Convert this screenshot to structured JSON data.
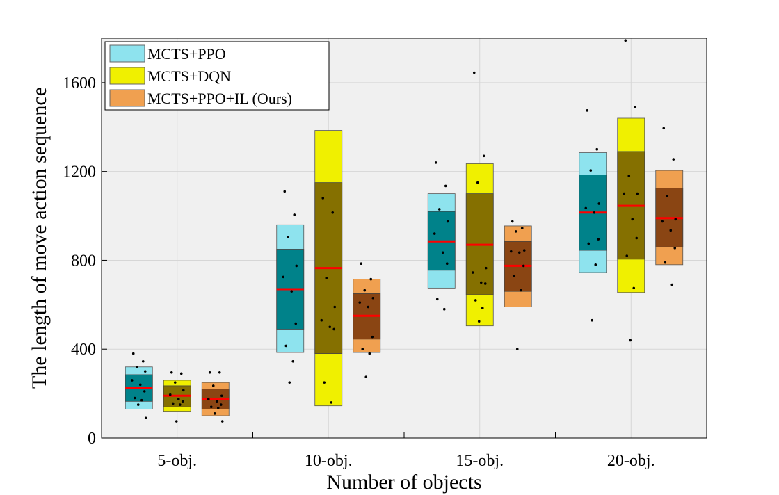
{
  "chart_data": {
    "type": "box",
    "title": "",
    "xlabel": "Number of objects",
    "ylabel": "The length of move action sequence",
    "ylim": [
      0,
      1800
    ],
    "yticks": [
      0,
      400,
      800,
      1200,
      1600
    ],
    "categories": [
      "5-obj.",
      "10-obj.",
      "15-obj.",
      "20-obj."
    ],
    "grid": true,
    "legend_position": "top-left",
    "series": [
      {
        "name": "MCTS+PPO",
        "light_color": "#8ee3ee",
        "dark_color": "#00828a",
        "boxes": [
          {
            "mean": 225,
            "sd_low": 165,
            "sd_high": 285,
            "ci_low": 130,
            "ci_high": 320,
            "points": [
              380,
              345,
              320,
              300,
              260,
              240,
              210,
              180,
              170,
              150,
              90
            ]
          },
          {
            "mean": 670,
            "sd_low": 490,
            "sd_high": 850,
            "ci_low": 385,
            "ci_high": 960,
            "points": [
              1110,
              1005,
              905,
              775,
              725,
              660,
              515,
              415,
              345,
              250
            ]
          },
          {
            "mean": 885,
            "sd_low": 755,
            "sd_high": 1020,
            "ci_low": 675,
            "ci_high": 1100,
            "points": [
              1240,
              1135,
              1030,
              975,
              920,
              835,
              785,
              625,
              580
            ]
          },
          {
            "mean": 1015,
            "sd_low": 845,
            "sd_high": 1185,
            "ci_low": 745,
            "ci_high": 1285,
            "points": [
              1475,
              1300,
              1205,
              1055,
              1035,
              1015,
              895,
              875,
              780,
              530
            ]
          }
        ]
      },
      {
        "name": "MCTS+DQN",
        "light_color": "#f0f000",
        "dark_color": "#857000",
        "boxes": [
          {
            "mean": 190,
            "sd_low": 140,
            "sd_high": 235,
            "ci_low": 120,
            "ci_high": 260,
            "points": [
              295,
              290,
              250,
              215,
              195,
              175,
              165,
              155,
              150,
              75
            ]
          },
          {
            "mean": 765,
            "sd_low": 380,
            "sd_high": 1150,
            "ci_low": 145,
            "ci_high": 1385,
            "points": [
              1080,
              1015,
              720,
              590,
              530,
              500,
              490,
              250,
              160
            ]
          },
          {
            "mean": 870,
            "sd_low": 645,
            "sd_high": 1100,
            "ci_low": 505,
            "ci_high": 1235,
            "points": [
              1645,
              1270,
              1150,
              765,
              745,
              700,
              695,
              620,
              585,
              525
            ]
          },
          {
            "mean": 1045,
            "sd_low": 805,
            "sd_high": 1290,
            "ci_low": 655,
            "ci_high": 1440,
            "points": [
              1790,
              1490,
              1180,
              1100,
              1100,
              985,
              900,
              820,
              675,
              440
            ]
          }
        ]
      },
      {
        "name": "MCTS+PPO+IL (Ours)",
        "light_color": "#f0a050",
        "dark_color": "#8a4513",
        "boxes": [
          {
            "mean": 175,
            "sd_low": 130,
            "sd_high": 220,
            "ci_low": 100,
            "ci_high": 250,
            "points": [
              295,
              295,
              235,
              190,
              175,
              165,
              150,
              140,
              135,
              110,
              75
            ]
          },
          {
            "mean": 550,
            "sd_low": 445,
            "sd_high": 650,
            "ci_low": 385,
            "ci_high": 715,
            "points": [
              785,
              715,
              665,
              630,
              610,
              590,
              455,
              400,
              380,
              275
            ]
          },
          {
            "mean": 775,
            "sd_low": 660,
            "sd_high": 885,
            "ci_low": 590,
            "ci_high": 955,
            "points": [
              975,
              945,
              930,
              845,
              840,
              835,
              775,
              730,
              665,
              400
            ]
          },
          {
            "mean": 990,
            "sd_low": 860,
            "sd_high": 1125,
            "ci_low": 780,
            "ci_high": 1205,
            "points": [
              1395,
              1255,
              1090,
              985,
              975,
              935,
              855,
              790,
              690
            ]
          }
        ]
      }
    ]
  }
}
